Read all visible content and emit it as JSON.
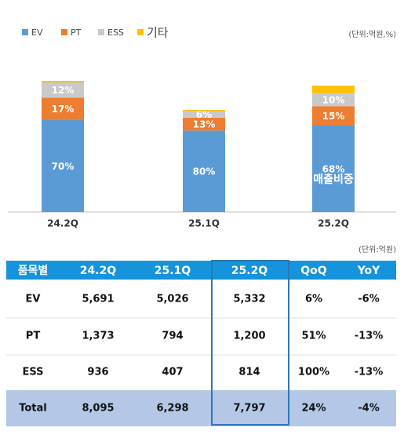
{
  "chart_data": {
    "type": "stacked_bar",
    "unit_note": "(단위:억원,%)",
    "annotation": "매출비중",
    "categories": [
      "24.2Q",
      "25.1Q",
      "25.2Q"
    ],
    "series": [
      {
        "name": "EV",
        "color": "#5b9bd5",
        "values": [
          5691,
          5026,
          5332
        ],
        "share_labels": [
          "70%",
          "80%",
          "68%"
        ]
      },
      {
        "name": "PT",
        "color": "#ed7d31",
        "values": [
          1373,
          794,
          1200
        ],
        "share_labels": [
          "17%",
          "13%",
          "15%"
        ]
      },
      {
        "name": "ESS",
        "color": "#c9c9c9",
        "values": [
          936,
          407,
          814
        ],
        "share_labels": [
          "12%",
          "6%",
          "10%"
        ]
      },
      {
        "name": "기타",
        "color": "#ffc000",
        "values": [
          95,
          71,
          451
        ],
        "share_labels": [
          null,
          null,
          null
        ]
      }
    ]
  },
  "table": {
    "unit": "(단위:억원)",
    "header": [
      "품목별",
      "24.2Q",
      "25.1Q",
      "25.2Q",
      "QoQ",
      "YoY"
    ],
    "rows": [
      [
        "EV",
        "5,691",
        "5,026",
        "5,332",
        "6%",
        "-6%"
      ],
      [
        "PT",
        "1,373",
        "794",
        "1,200",
        "51%",
        "-13%"
      ],
      [
        "ESS",
        "936",
        "407",
        "814",
        "100%",
        "-13%"
      ],
      [
        "Total",
        "8,095",
        "6,298",
        "7,797",
        "24%",
        "-4%"
      ]
    ]
  }
}
